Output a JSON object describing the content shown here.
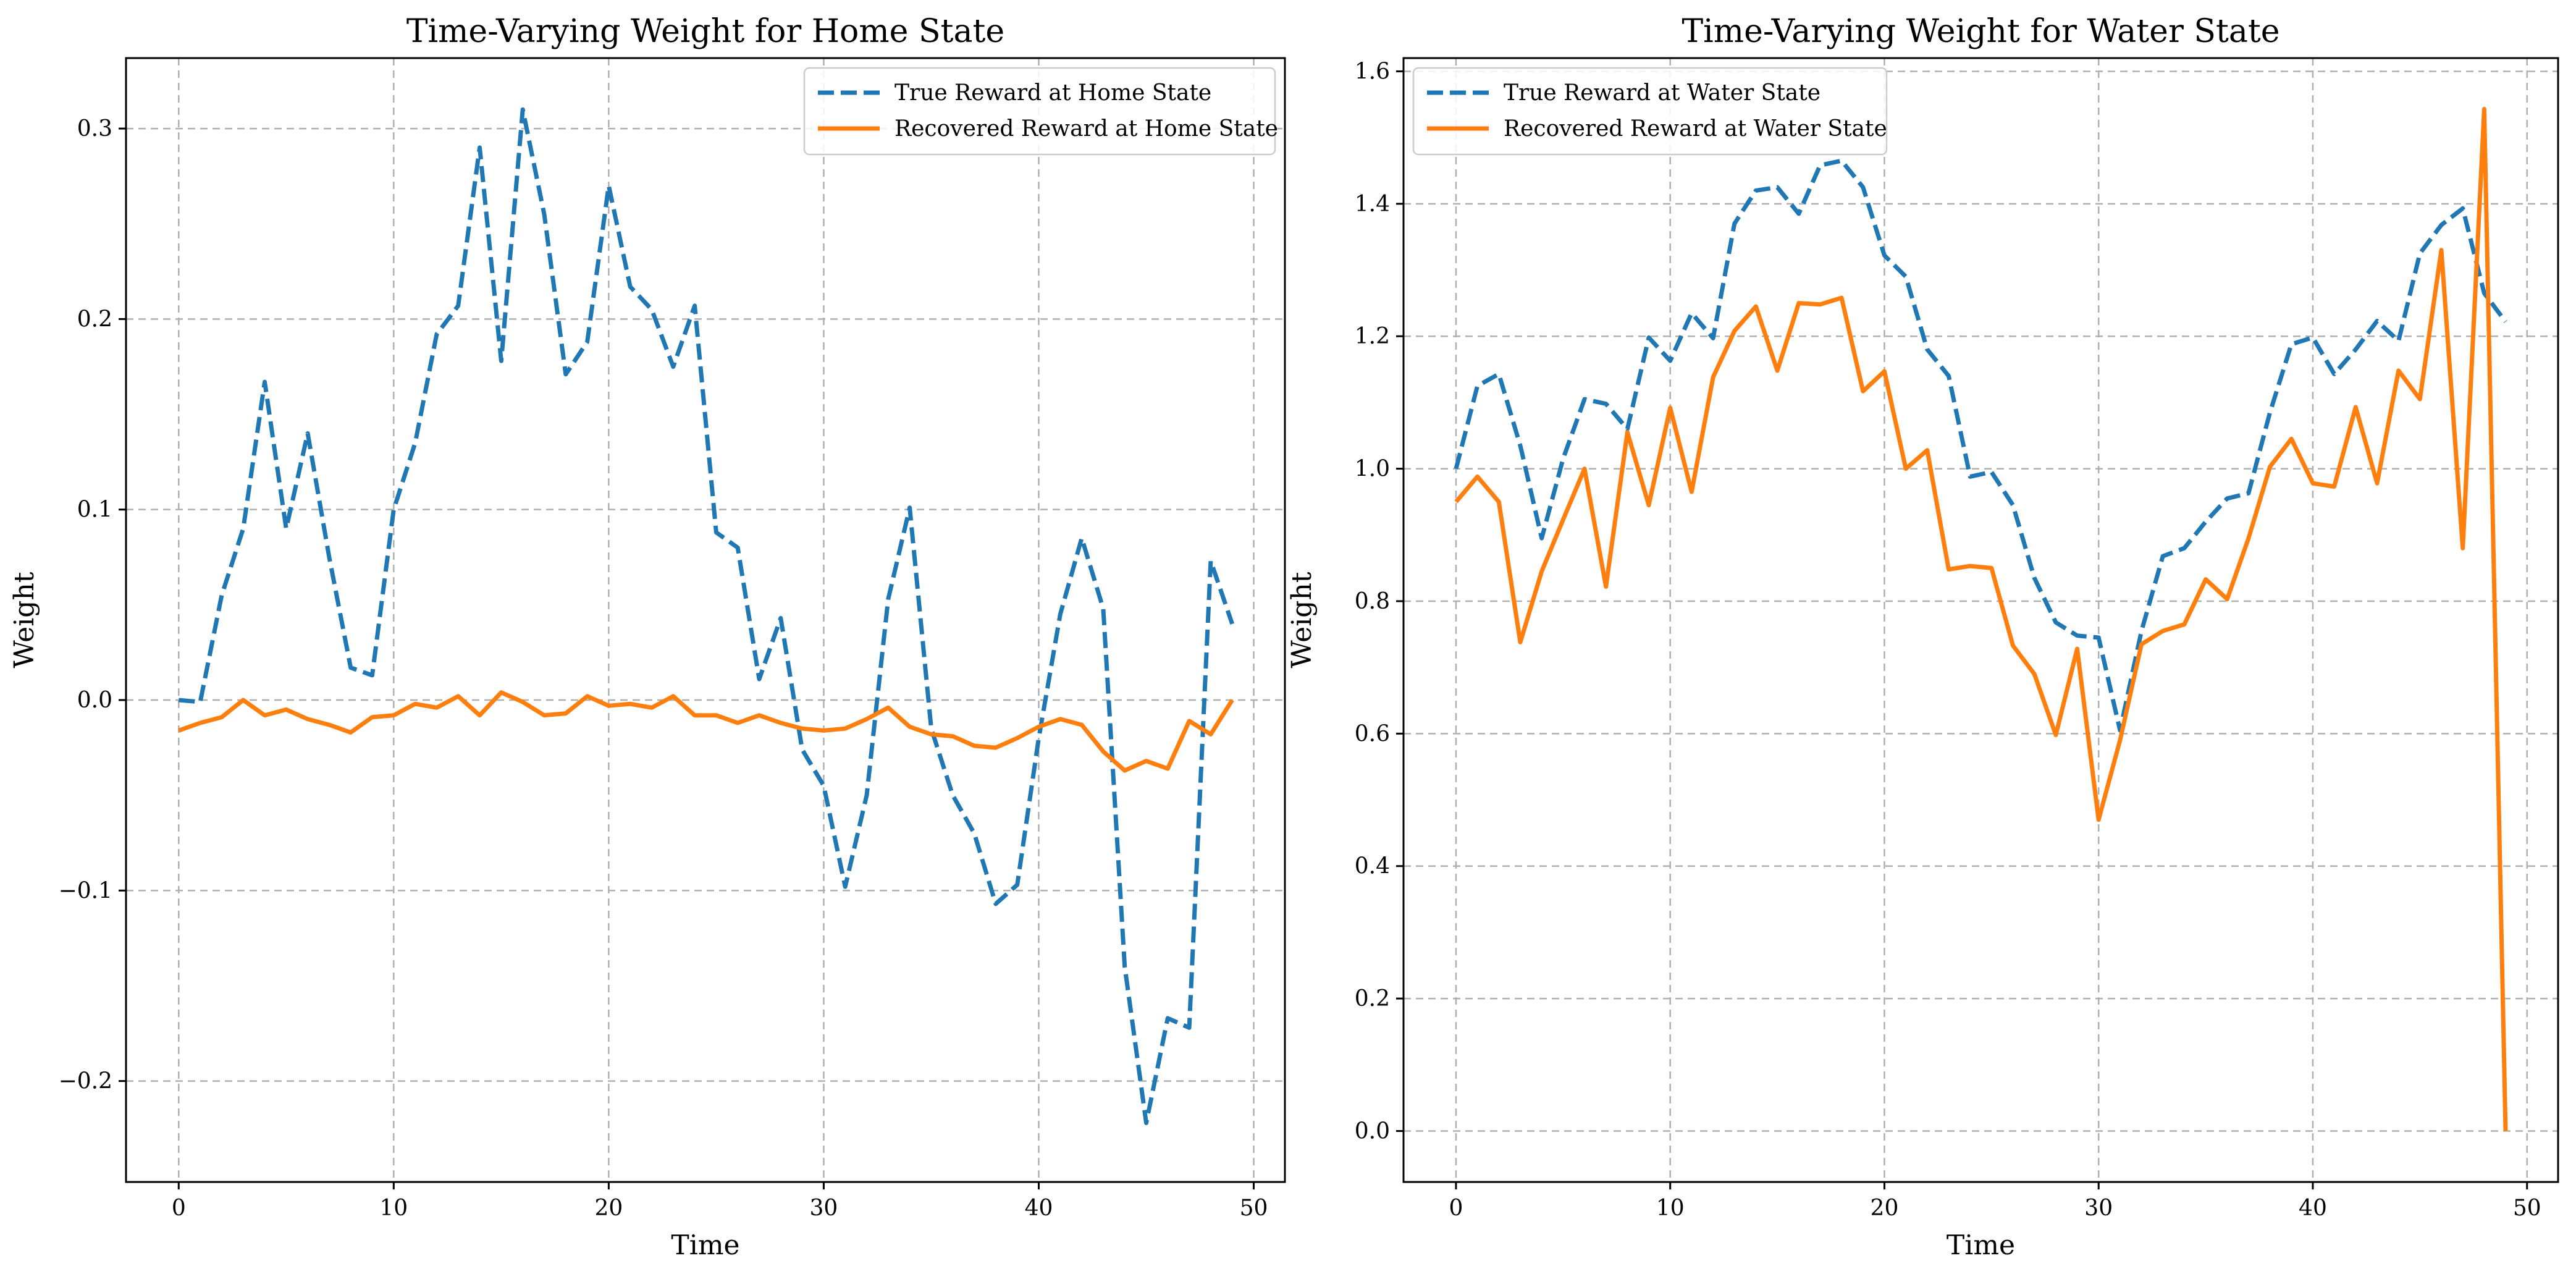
{
  "chart_data": [
    {
      "type": "line",
      "title": "Time-Varying Weight for Home State",
      "xlabel": "Time",
      "ylabel": "Weight",
      "xlim": [
        -2.45,
        51.45
      ],
      "ylim": [
        -0.253,
        0.337
      ],
      "xticks": [
        0,
        10,
        20,
        30,
        40,
        50
      ],
      "xtick_labels": [
        "0",
        "10",
        "20",
        "30",
        "40",
        "50"
      ],
      "yticks": [
        -0.2,
        -0.1,
        0.0,
        0.1,
        0.2,
        0.3
      ],
      "ytick_labels": [
        "−0.2",
        "−0.1",
        "0.0",
        "0.1",
        "0.2",
        "0.3"
      ],
      "grid": true,
      "legend_position": "upper right",
      "series": [
        {
          "name": "True Reward at Home State",
          "color": "#1f77b4",
          "style": "dashed",
          "x": [
            0,
            1,
            2,
            3,
            4,
            5,
            6,
            7,
            8,
            9,
            10,
            11,
            12,
            13,
            14,
            15,
            16,
            17,
            18,
            19,
            20,
            21,
            22,
            23,
            24,
            25,
            26,
            27,
            28,
            29,
            30,
            31,
            32,
            33,
            34,
            35,
            36,
            37,
            38,
            39,
            40,
            41,
            42,
            43,
            44,
            45,
            46,
            47,
            48,
            49
          ],
          "y": [
            0.0,
            -0.001,
            0.055,
            0.09,
            0.167,
            0.09,
            0.14,
            0.075,
            0.017,
            0.013,
            0.1,
            0.135,
            0.192,
            0.207,
            0.29,
            0.178,
            0.31,
            0.255,
            0.171,
            0.188,
            0.27,
            0.217,
            0.205,
            0.175,
            0.207,
            0.088,
            0.08,
            0.011,
            0.043,
            -0.026,
            -0.045,
            -0.098,
            -0.05,
            0.053,
            0.101,
            -0.015,
            -0.05,
            -0.07,
            -0.107,
            -0.097,
            -0.02,
            0.045,
            0.085,
            0.048,
            -0.14,
            -0.222,
            -0.167,
            -0.172,
            0.073,
            0.04
          ]
        },
        {
          "name": "Recovered Reward at Home State",
          "color": "#ff7f0e",
          "style": "solid",
          "x": [
            0,
            1,
            2,
            3,
            4,
            5,
            6,
            7,
            8,
            9,
            10,
            11,
            12,
            13,
            14,
            15,
            16,
            17,
            18,
            19,
            20,
            21,
            22,
            23,
            24,
            25,
            26,
            27,
            28,
            29,
            30,
            31,
            32,
            33,
            34,
            35,
            36,
            37,
            38,
            39,
            40,
            41,
            42,
            43,
            44,
            45,
            46,
            47,
            48,
            49
          ],
          "y": [
            -0.016,
            -0.012,
            -0.009,
            0.0,
            -0.008,
            -0.005,
            -0.01,
            -0.013,
            -0.017,
            -0.009,
            -0.008,
            -0.002,
            -0.004,
            0.002,
            -0.008,
            0.004,
            -0.001,
            -0.008,
            -0.007,
            0.002,
            -0.003,
            -0.002,
            -0.004,
            0.002,
            -0.008,
            -0.008,
            -0.012,
            -0.008,
            -0.012,
            -0.015,
            -0.016,
            -0.015,
            -0.01,
            -0.004,
            -0.014,
            -0.018,
            -0.019,
            -0.024,
            -0.025,
            -0.02,
            -0.014,
            -0.01,
            -0.013,
            -0.027,
            -0.037,
            -0.032,
            -0.036,
            -0.011,
            -0.018,
            0.0
          ]
        }
      ]
    },
    {
      "type": "line",
      "title": "Time-Varying Weight for Water State",
      "xlabel": "Time",
      "ylabel": "Weight",
      "xlim": [
        -2.45,
        51.45
      ],
      "ylim": [
        -0.077,
        1.62
      ],
      "xticks": [
        0,
        10,
        20,
        30,
        40,
        50
      ],
      "xtick_labels": [
        "0",
        "10",
        "20",
        "30",
        "40",
        "50"
      ],
      "yticks": [
        0.0,
        0.2,
        0.4,
        0.6,
        0.8,
        1.0,
        1.2,
        1.4,
        1.6
      ],
      "ytick_labels": [
        "0.0",
        "0.2",
        "0.4",
        "0.6",
        "0.8",
        "1.0",
        "1.2",
        "1.4",
        "1.6"
      ],
      "grid": true,
      "legend_position": "upper left",
      "series": [
        {
          "name": "True Reward at Water State",
          "color": "#1f77b4",
          "style": "dashed",
          "x": [
            0,
            1,
            2,
            3,
            4,
            5,
            6,
            7,
            8,
            9,
            10,
            11,
            12,
            13,
            14,
            15,
            16,
            17,
            18,
            19,
            20,
            21,
            22,
            23,
            24,
            25,
            26,
            27,
            28,
            29,
            30,
            31,
            32,
            33,
            34,
            35,
            36,
            37,
            38,
            39,
            40,
            41,
            42,
            43,
            44,
            45,
            46,
            47,
            48,
            49
          ],
          "y": [
            1.0,
            1.125,
            1.143,
            1.035,
            0.895,
            1.015,
            1.105,
            1.098,
            1.06,
            1.198,
            1.163,
            1.235,
            1.197,
            1.37,
            1.42,
            1.425,
            1.385,
            1.458,
            1.465,
            1.425,
            1.322,
            1.29,
            1.18,
            1.14,
            0.988,
            0.995,
            0.945,
            0.835,
            0.768,
            0.748,
            0.745,
            0.605,
            0.755,
            0.868,
            0.88,
            0.92,
            0.955,
            0.963,
            1.085,
            1.188,
            1.198,
            1.143,
            1.18,
            1.223,
            1.193,
            1.325,
            1.368,
            1.393,
            1.265,
            1.222
          ]
        },
        {
          "name": "Recovered Reward at Water State",
          "color": "#ff7f0e",
          "style": "solid",
          "x": [
            0,
            1,
            2,
            3,
            4,
            5,
            6,
            7,
            8,
            9,
            10,
            11,
            12,
            13,
            14,
            15,
            16,
            17,
            18,
            19,
            20,
            21,
            22,
            23,
            24,
            25,
            26,
            27,
            28,
            29,
            30,
            31,
            32,
            33,
            34,
            35,
            36,
            37,
            38,
            39,
            40,
            41,
            42,
            43,
            44,
            45,
            46,
            47,
            48,
            49
          ],
          "y": [
            0.95,
            0.988,
            0.95,
            0.738,
            0.845,
            0.923,
            1.0,
            0.822,
            1.055,
            0.945,
            1.092,
            0.965,
            1.138,
            1.208,
            1.245,
            1.148,
            1.25,
            1.248,
            1.258,
            1.117,
            1.147,
            1.0,
            1.028,
            0.848,
            0.853,
            0.85,
            0.733,
            0.69,
            0.598,
            0.728,
            0.47,
            0.59,
            0.735,
            0.755,
            0.765,
            0.833,
            0.803,
            0.895,
            1.003,
            1.045,
            0.978,
            0.973,
            1.093,
            0.978,
            1.148,
            1.105,
            1.33,
            0.88,
            1.543,
            0.0
          ]
        }
      ]
    }
  ]
}
